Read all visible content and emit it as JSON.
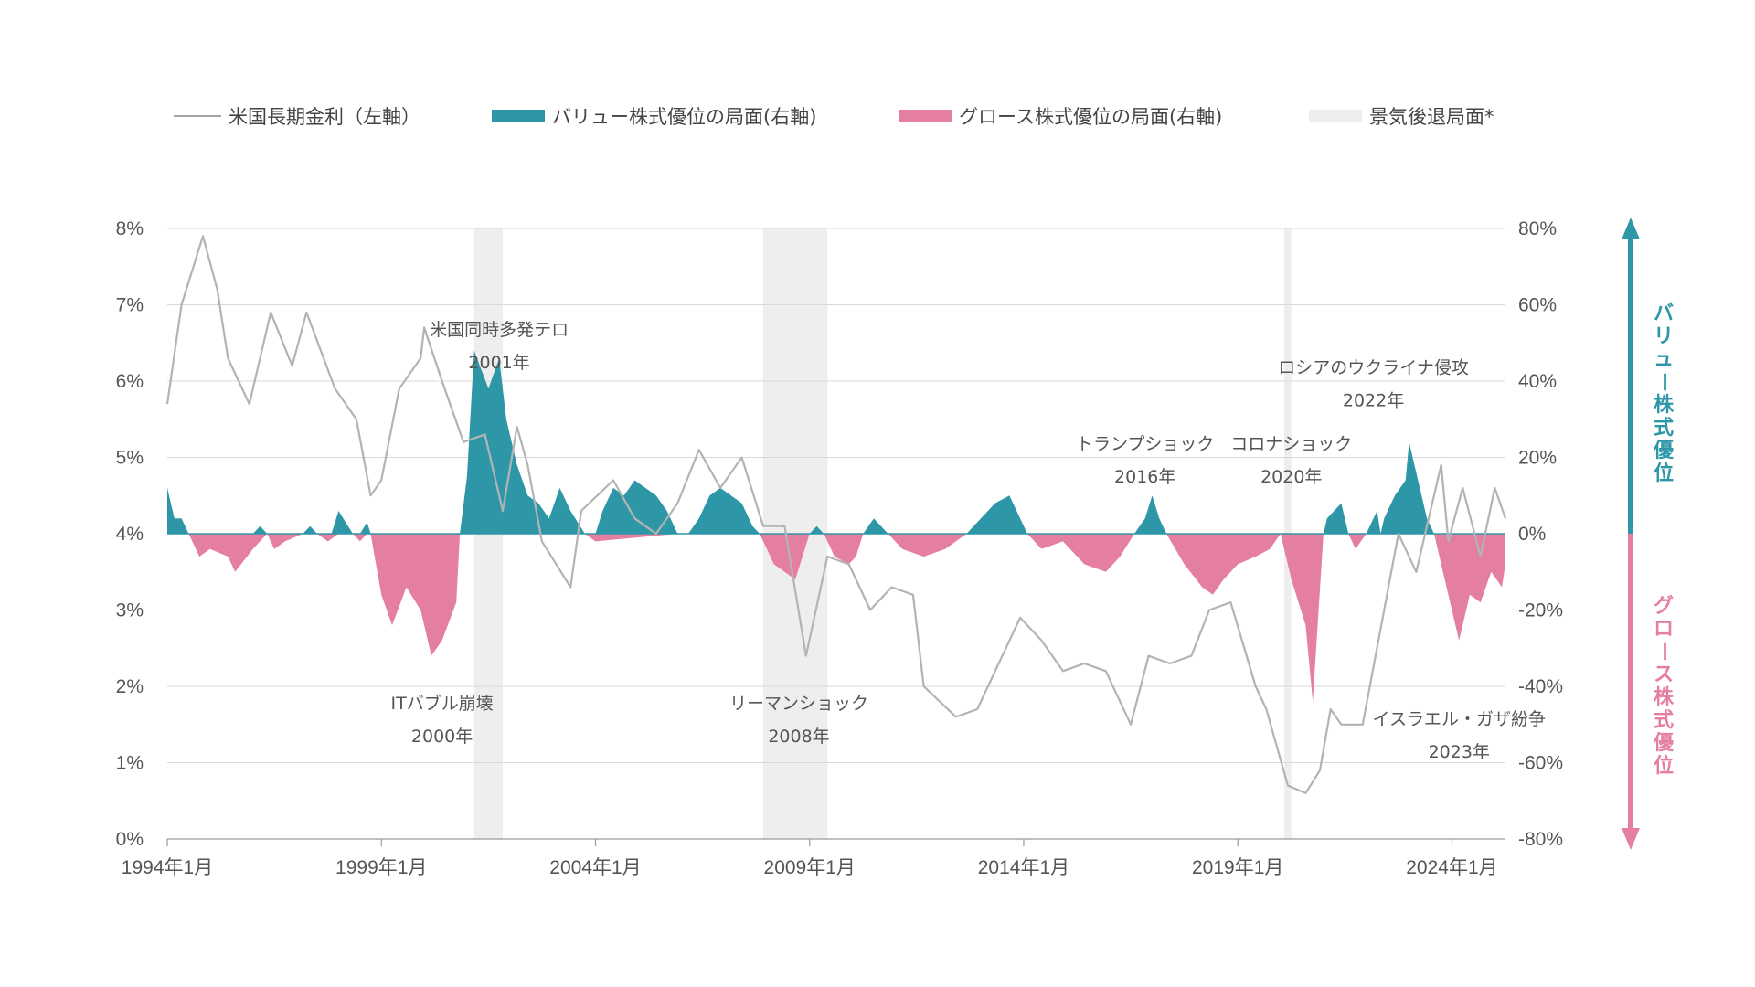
{
  "legend": {
    "rate_label": "米国長期金利（左軸）",
    "value_label": "バリュー株式優位の局面(右軸)",
    "growth_label": "グロース株式優位の局面(右軸)",
    "recession_label": "景気後退局面*"
  },
  "colors": {
    "value": "#2e97a7",
    "growth": "#e57fa2",
    "rate_line": "#b3b3b3",
    "recession": "#eeeeee",
    "grid": "#d9d9d9",
    "text": "#555555"
  },
  "side_labels": {
    "value_advantage": "バリュー株式優位",
    "growth_advantage": "グロース株式優位"
  },
  "chart_data": {
    "type": "line",
    "title": "",
    "xlabel": "",
    "ylabel_left": "",
    "ylabel_right": "",
    "x_range": [
      "1994-01",
      "2025-04"
    ],
    "y_left_range": [
      0,
      8
    ],
    "y_right_range": [
      -80,
      80
    ],
    "y_left_ticks": [
      "0%",
      "1%",
      "2%",
      "3%",
      "4%",
      "5%",
      "6%",
      "7%",
      "8%"
    ],
    "y_right_ticks": [
      "-80%",
      "-60%",
      "-40%",
      "-20%",
      "0%",
      "20%",
      "40%",
      "60%",
      "80%"
    ],
    "x_ticks": [
      {
        "date": "1994-01",
        "label": "1994年1月"
      },
      {
        "date": "1999-01",
        "label": "1999年1月"
      },
      {
        "date": "2004-01",
        "label": "2004年1月"
      },
      {
        "date": "2009-01",
        "label": "2009年1月"
      },
      {
        "date": "2014-01",
        "label": "2014年1月"
      },
      {
        "date": "2019-01",
        "label": "2019年1月"
      },
      {
        "date": "2024-01",
        "label": "2024年1月"
      }
    ],
    "grid": true,
    "recessions": [
      {
        "start": "2001-03",
        "end": "2001-11"
      },
      {
        "start": "2007-12",
        "end": "2009-06"
      },
      {
        "start": "2020-02",
        "end": "2020-04"
      }
    ],
    "series": [
      {
        "name": "米国長期金利（左軸）",
        "axis": "left",
        "points": [
          [
            "1994-01",
            5.7
          ],
          [
            "1994-05",
            7.0
          ],
          [
            "1994-11",
            7.9
          ],
          [
            "1995-03",
            7.2
          ],
          [
            "1995-06",
            6.3
          ],
          [
            "1995-12",
            5.7
          ],
          [
            "1996-06",
            6.9
          ],
          [
            "1996-12",
            6.2
          ],
          [
            "1997-04",
            6.9
          ],
          [
            "1997-12",
            5.9
          ],
          [
            "1998-06",
            5.5
          ],
          [
            "1998-10",
            4.5
          ],
          [
            "1999-01",
            4.7
          ],
          [
            "1999-06",
            5.9
          ],
          [
            "1999-12",
            6.3
          ],
          [
            "2000-01",
            6.7
          ],
          [
            "2000-06",
            6.0
          ],
          [
            "2000-12",
            5.2
          ],
          [
            "2001-06",
            5.3
          ],
          [
            "2001-11",
            4.3
          ],
          [
            "2002-03",
            5.4
          ],
          [
            "2002-06",
            4.9
          ],
          [
            "2002-10",
            3.9
          ],
          [
            "2003-06",
            3.3
          ],
          [
            "2003-09",
            4.3
          ],
          [
            "2004-06",
            4.7
          ],
          [
            "2004-12",
            4.2
          ],
          [
            "2005-06",
            4.0
          ],
          [
            "2005-12",
            4.4
          ],
          [
            "2006-06",
            5.1
          ],
          [
            "2006-12",
            4.6
          ],
          [
            "2007-06",
            5.0
          ],
          [
            "2007-12",
            4.1
          ],
          [
            "2008-06",
            4.1
          ],
          [
            "2008-12",
            2.4
          ],
          [
            "2009-06",
            3.7
          ],
          [
            "2009-12",
            3.6
          ],
          [
            "2010-06",
            3.0
          ],
          [
            "2010-12",
            3.3
          ],
          [
            "2011-06",
            3.2
          ],
          [
            "2011-09",
            2.0
          ],
          [
            "2012-06",
            1.6
          ],
          [
            "2012-12",
            1.7
          ],
          [
            "2013-06",
            2.3
          ],
          [
            "2013-12",
            2.9
          ],
          [
            "2014-06",
            2.6
          ],
          [
            "2014-12",
            2.2
          ],
          [
            "2015-06",
            2.3
          ],
          [
            "2015-12",
            2.2
          ],
          [
            "2016-07",
            1.5
          ],
          [
            "2016-12",
            2.4
          ],
          [
            "2017-06",
            2.3
          ],
          [
            "2017-12",
            2.4
          ],
          [
            "2018-05",
            3.0
          ],
          [
            "2018-11",
            3.1
          ],
          [
            "2019-06",
            2.0
          ],
          [
            "2019-09",
            1.7
          ],
          [
            "2020-03",
            0.7
          ],
          [
            "2020-08",
            0.6
          ],
          [
            "2020-12",
            0.9
          ],
          [
            "2021-03",
            1.7
          ],
          [
            "2021-06",
            1.5
          ],
          [
            "2021-12",
            1.5
          ],
          [
            "2022-06",
            3.0
          ],
          [
            "2022-10",
            4.0
          ],
          [
            "2023-03",
            3.5
          ],
          [
            "2023-10",
            4.9
          ],
          [
            "2023-12",
            3.9
          ],
          [
            "2024-04",
            4.6
          ],
          [
            "2024-09",
            3.7
          ],
          [
            "2025-01",
            4.6
          ],
          [
            "2025-04",
            4.2
          ]
        ]
      },
      {
        "name": "バリュー株式優位の局面(右軸)",
        "axis": "right",
        "points": [
          [
            "1994-01",
            12
          ],
          [
            "1994-03",
            4
          ],
          [
            "1994-05",
            4
          ],
          [
            "1994-07",
            0
          ],
          [
            "1996-01",
            0
          ],
          [
            "1996-03",
            2
          ],
          [
            "1996-05",
            0
          ],
          [
            "1997-03",
            0
          ],
          [
            "1997-05",
            2
          ],
          [
            "1997-07",
            0
          ],
          [
            "1997-11",
            0
          ],
          [
            "1998-01",
            6
          ],
          [
            "1998-03",
            3
          ],
          [
            "1998-05",
            0
          ],
          [
            "1998-07",
            0
          ],
          [
            "1998-09",
            3
          ],
          [
            "1998-10",
            0
          ],
          [
            "2000-11",
            0
          ],
          [
            "2001-01",
            15
          ],
          [
            "2001-03",
            48
          ],
          [
            "2001-07",
            38
          ],
          [
            "2001-10",
            46
          ],
          [
            "2001-12",
            30
          ],
          [
            "2002-03",
            18
          ],
          [
            "2002-06",
            10
          ],
          [
            "2002-09",
            8
          ],
          [
            "2002-12",
            4
          ],
          [
            "2003-03",
            12
          ],
          [
            "2003-06",
            6
          ],
          [
            "2003-10",
            0
          ],
          [
            "2004-01",
            0
          ],
          [
            "2004-03",
            6
          ],
          [
            "2004-06",
            12
          ],
          [
            "2004-09",
            10
          ],
          [
            "2004-12",
            14
          ],
          [
            "2005-03",
            12
          ],
          [
            "2005-06",
            10
          ],
          [
            "2005-09",
            6
          ],
          [
            "2005-12",
            0
          ],
          [
            "2006-03",
            0
          ],
          [
            "2006-06",
            4
          ],
          [
            "2006-09",
            10
          ],
          [
            "2006-12",
            12
          ],
          [
            "2007-06",
            8
          ],
          [
            "2007-09",
            2
          ],
          [
            "2007-11",
            0
          ],
          [
            "2009-01",
            0
          ],
          [
            "2009-03",
            2
          ],
          [
            "2009-05",
            0
          ],
          [
            "2010-04",
            0
          ],
          [
            "2010-07",
            4
          ],
          [
            "2010-09",
            2
          ],
          [
            "2010-11",
            0
          ],
          [
            "2012-09",
            0
          ],
          [
            "2013-01",
            4
          ],
          [
            "2013-05",
            8
          ],
          [
            "2013-09",
            10
          ],
          [
            "2013-12",
            4
          ],
          [
            "2014-02",
            0
          ],
          [
            "2016-08",
            0
          ],
          [
            "2016-11",
            4
          ],
          [
            "2017-01",
            10
          ],
          [
            "2017-03",
            4
          ],
          [
            "2017-05",
            0
          ],
          [
            "2021-01",
            0
          ],
          [
            "2021-02",
            4
          ],
          [
            "2021-06",
            8
          ],
          [
            "2021-08",
            0
          ],
          [
            "2022-01",
            0
          ],
          [
            "2022-04",
            6
          ],
          [
            "2022-05",
            0
          ],
          [
            "2022-06",
            4
          ],
          [
            "2022-09",
            10
          ],
          [
            "2022-12",
            14
          ],
          [
            "2023-01",
            24
          ],
          [
            "2023-03",
            16
          ],
          [
            "2023-06",
            4
          ],
          [
            "2023-08",
            0
          ]
        ]
      },
      {
        "name": "グロース株式優位の局面(右軸)",
        "axis": "right",
        "points": [
          [
            "1994-07",
            0
          ],
          [
            "1994-10",
            -6
          ],
          [
            "1995-01",
            -4
          ],
          [
            "1995-06",
            -6
          ],
          [
            "1995-08",
            -10
          ],
          [
            "1996-01",
            -4
          ],
          [
            "1996-05",
            0
          ],
          [
            "1996-07",
            -4
          ],
          [
            "1996-10",
            -2
          ],
          [
            "1997-03",
            0
          ],
          [
            "1997-07",
            0
          ],
          [
            "1997-10",
            -2
          ],
          [
            "1998-01",
            0
          ],
          [
            "1998-05",
            0
          ],
          [
            "1998-07",
            -2
          ],
          [
            "1998-09",
            0
          ],
          [
            "1998-10",
            0
          ],
          [
            "1999-01",
            -16
          ],
          [
            "1999-04",
            -24
          ],
          [
            "1999-08",
            -14
          ],
          [
            "1999-12",
            -20
          ],
          [
            "2000-03",
            -32
          ],
          [
            "2000-06",
            -28
          ],
          [
            "2000-10",
            -18
          ],
          [
            "2000-11",
            0
          ],
          [
            "2003-10",
            0
          ],
          [
            "2004-01",
            -2
          ],
          [
            "2005-12",
            0
          ],
          [
            "2006-03",
            0
          ],
          [
            "2007-11",
            0
          ],
          [
            "2008-03",
            -8
          ],
          [
            "2008-06",
            -10
          ],
          [
            "2008-09",
            -12
          ],
          [
            "2009-01",
            0
          ],
          [
            "2009-05",
            0
          ],
          [
            "2009-08",
            -6
          ],
          [
            "2009-12",
            -8
          ],
          [
            "2010-02",
            -6
          ],
          [
            "2010-04",
            0
          ],
          [
            "2010-11",
            0
          ],
          [
            "2011-03",
            -4
          ],
          [
            "2011-09",
            -6
          ],
          [
            "2012-03",
            -4
          ],
          [
            "2012-09",
            0
          ],
          [
            "2014-02",
            0
          ],
          [
            "2014-06",
            -4
          ],
          [
            "2014-12",
            -2
          ],
          [
            "2015-06",
            -8
          ],
          [
            "2015-12",
            -10
          ],
          [
            "2016-04",
            -6
          ],
          [
            "2016-08",
            0
          ],
          [
            "2017-05",
            0
          ],
          [
            "2017-10",
            -8
          ],
          [
            "2018-03",
            -14
          ],
          [
            "2018-06",
            -16
          ],
          [
            "2018-09",
            -12
          ],
          [
            "2019-01",
            -8
          ],
          [
            "2019-06",
            -6
          ],
          [
            "2019-10",
            -4
          ],
          [
            "2020-01",
            0
          ],
          [
            "2020-04",
            -12
          ],
          [
            "2020-08",
            -24
          ],
          [
            "2020-10",
            -44
          ],
          [
            "2021-01",
            0
          ],
          [
            "2021-08",
            0
          ],
          [
            "2021-10",
            -4
          ],
          [
            "2022-01",
            0
          ],
          [
            "2022-05",
            0
          ],
          [
            "2023-08",
            0
          ],
          [
            "2023-10",
            -8
          ],
          [
            "2024-01",
            -20
          ],
          [
            "2024-03",
            -28
          ],
          [
            "2024-06",
            -16
          ],
          [
            "2024-09",
            -18
          ],
          [
            "2024-12",
            -10
          ],
          [
            "2025-03",
            -14
          ],
          [
            "2025-04",
            -8
          ]
        ]
      }
    ],
    "annotations": [
      {
        "lines": [
          "米国同時多発テロ",
          "2001年"
        ],
        "date": "2001-10",
        "value": 6.6,
        "axis": "left"
      },
      {
        "lines": [
          "ITバブル崩壊",
          "2000年"
        ],
        "date": "2000-06",
        "value": 1.7,
        "axis": "left"
      },
      {
        "lines": [
          "リーマンショック",
          "2008年"
        ],
        "date": "2008-10",
        "value": 1.7,
        "axis": "left"
      },
      {
        "lines": [
          "トランプショック",
          "2016年"
        ],
        "date": "2016-11",
        "value": 5.1,
        "axis": "left"
      },
      {
        "lines": [
          "コロナショック",
          "2020年"
        ],
        "date": "2020-04",
        "value": 5.1,
        "axis": "left"
      },
      {
        "lines": [
          "ロシアのウクライナ侵攻",
          "2022年"
        ],
        "date": "2022-03",
        "value": 6.1,
        "axis": "left"
      },
      {
        "lines": [
          "イスラエル・ガザ紛争",
          "2023年"
        ],
        "date": "2024-03",
        "value": 1.5,
        "axis": "left"
      }
    ]
  }
}
